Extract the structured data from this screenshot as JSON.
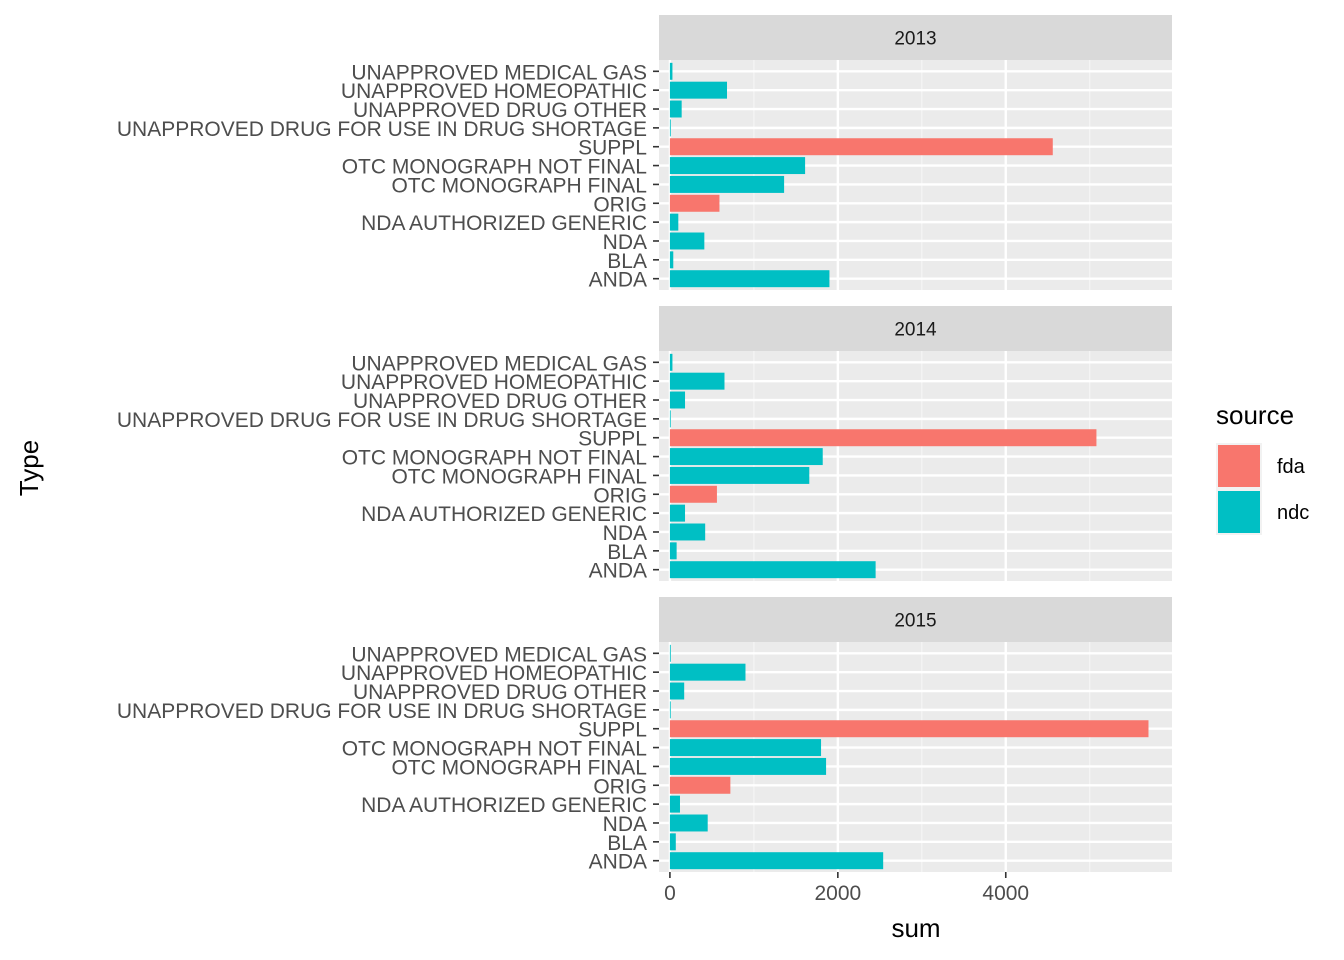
{
  "chart_data": {
    "type": "bar",
    "orientation": "horizontal",
    "xlabel": "sum",
    "ylabel": "Type",
    "xlim": [
      -130,
      5980
    ],
    "x_ticks": [
      0,
      2000,
      4000
    ],
    "x_tick_labels": [
      "0",
      "2000",
      "4000"
    ],
    "grid": true,
    "legend": {
      "title": "source",
      "position": "right",
      "entries": [
        {
          "label": "fda",
          "color": "#F8766D"
        },
        {
          "label": "ndc",
          "color": "#00BFC4"
        }
      ]
    },
    "categories": [
      "ANDA",
      "BLA",
      "NDA",
      "NDA AUTHORIZED GENERIC",
      "ORIG",
      "OTC MONOGRAPH FINAL",
      "OTC MONOGRAPH NOT FINAL",
      "SUPPL",
      "UNAPPROVED DRUG FOR USE IN DRUG SHORTAGE",
      "UNAPPROVED DRUG OTHER",
      "UNAPPROVED HOMEOPATHIC",
      "UNAPPROVED MEDICAL GAS"
    ],
    "category_source": [
      "ndc",
      "ndc",
      "ndc",
      "ndc",
      "fda",
      "ndc",
      "ndc",
      "fda",
      "ndc",
      "ndc",
      "ndc",
      "ndc"
    ],
    "panels": [
      {
        "label": "2013",
        "values": [
          1900,
          40,
          410,
          100,
          590,
          1360,
          1610,
          4560,
          10,
          140,
          680,
          30
        ]
      },
      {
        "label": "2014",
        "values": [
          2450,
          80,
          420,
          180,
          560,
          1660,
          1820,
          5080,
          5,
          180,
          650,
          30
        ]
      },
      {
        "label": "2015",
        "values": [
          2540,
          70,
          450,
          120,
          720,
          1860,
          1800,
          5700,
          5,
          170,
          900,
          10
        ]
      }
    ]
  }
}
